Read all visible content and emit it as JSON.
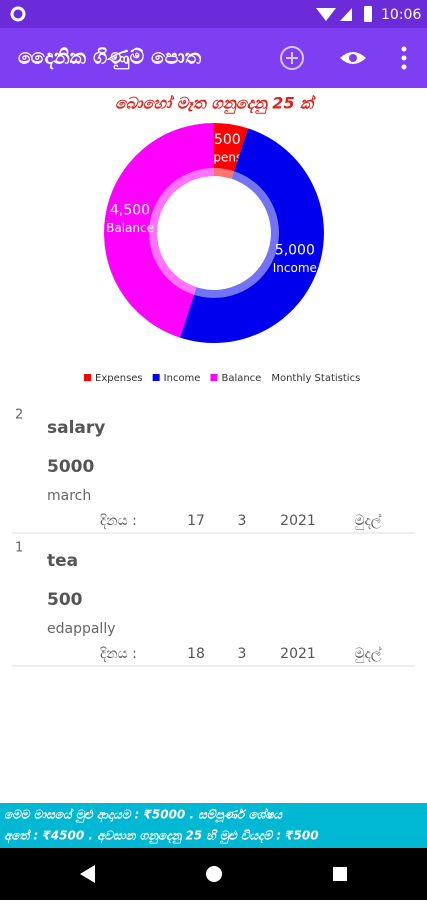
{
  "status_bar": {
    "time": "10:06"
  },
  "app_bar": {
    "title": "දෛනික ගිණුම් පොත"
  },
  "chart_data": {
    "type": "pie",
    "donut": true,
    "title": "බොහෝ මෑත ගනුදෙනු 25 ක්",
    "categories": [
      "Expenses",
      "Income",
      "Balance"
    ],
    "values": [
      500,
      5000,
      4500
    ],
    "value_labels": [
      "500",
      "5,000",
      "4,500"
    ],
    "colors": [
      "#ff0000",
      "#0000ee",
      "#ff00ff"
    ],
    "description": "Monthly Statistics"
  },
  "records": [
    {
      "index": "2",
      "name": "salary",
      "amount": "5000",
      "place": "march",
      "date_label": "දිනය :",
      "day": "17",
      "month": "3",
      "year": "2021",
      "currency_label": "මුදල්"
    },
    {
      "index": "1",
      "name": "tea",
      "amount": "500",
      "place": "edappally",
      "date_label": "දිනය :",
      "day": "18",
      "month": "3",
      "year": "2021",
      "currency_label": "මුදල්"
    }
  ],
  "footer": {
    "lines": [
      "මෙම මාසයේ මුළු ආදායම : ₹5000 . සම්පූර්ණ ශේෂය",
      "අතේ : ₹4500 . අවසාන ගනුදෙනු 25 හි මුළු වියදම් : ₹500"
    ]
  }
}
